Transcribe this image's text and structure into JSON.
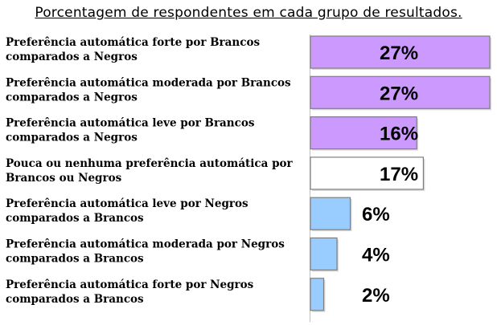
{
  "chart_data": {
    "type": "bar",
    "orientation": "horizontal",
    "title": "Porcentagem de respondentes em cada grupo de resultados.",
    "categories": [
      "Preferência automática forte por Brancos comparados a Negros",
      "Preferência automática moderada por Brancos comparados a Negros",
      "Preferência automática leve por Brancos comparados a Negros",
      "Pouca ou nenhuma preferência automática por Brancos ou Negros",
      "Preferência automática leve por Negros comparados a Brancos",
      "Preferência automática moderada por Negros comparados a Brancos",
      "Preferência automática forte por Negros comparados a Brancos"
    ],
    "category_lines": [
      [
        "Preferência automática forte por Brancos",
        "comparados a Negros"
      ],
      [
        "Preferência automática moderada por Brancos",
        "comparados a Negros"
      ],
      [
        "Preferência automática leve por Brancos",
        "comparados a Negros"
      ],
      [
        "Pouca ou nenhuma preferência automática por",
        "Brancos ou Negros"
      ],
      [
        "Preferência automática leve por Negros",
        "comparados a Brancos"
      ],
      [
        "Preferência automática moderada por Negros",
        "comparados a Brancos"
      ],
      [
        "Preferência automática forte por Negros",
        "comparados a Brancos"
      ]
    ],
    "values": [
      27,
      27,
      16,
      17,
      6,
      4,
      2
    ],
    "value_labels": [
      "27%",
      "27%",
      "16%",
      "17%",
      "6%",
      "4%",
      "2%"
    ],
    "xlim": [
      0,
      27
    ],
    "grid": false,
    "legend": "none",
    "colors": [
      "#cc99ff",
      "#cc99ff",
      "#cc99ff",
      "#ffffff",
      "#99ccff",
      "#99ccff",
      "#99ccff"
    ],
    "bar_edge_color": "#7f7f7f"
  }
}
